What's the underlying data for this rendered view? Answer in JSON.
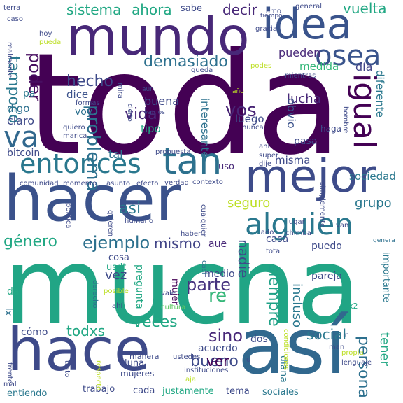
{
  "words": [
    {
      "text": "toda",
      "color": "#440154"
    },
    {
      "text": "mucha",
      "color": "#21a585"
    },
    {
      "text": "hacer",
      "color": "#3b528b"
    },
    {
      "text": "hace",
      "color": "#3e4a89"
    },
    {
      "text": "mundo",
      "color": "#482878"
    },
    {
      "text": "así",
      "color": "#31688e"
    },
    {
      "text": "idea",
      "color": "#3a548c"
    },
    {
      "text": "mejor",
      "color": "#3e4c8a"
    },
    {
      "text": "entonces",
      "color": "#2a788e"
    },
    {
      "text": "tan",
      "color": "#2d718e"
    },
    {
      "text": "alguien",
      "color": "#2a788e"
    },
    {
      "text": "osea",
      "color": "#3a548c"
    },
    {
      "text": "va",
      "color": "#31688e"
    },
    {
      "text": "igual",
      "color": "#440154"
    },
    {
      "text": "sistema",
      "color": "#22a884"
    },
    {
      "text": "ahora",
      "color": "#22a884"
    },
    {
      "text": "decir",
      "color": "#482878"
    },
    {
      "text": "poder",
      "color": "#470e61"
    },
    {
      "text": "vuelta",
      "color": "#22a884"
    },
    {
      "text": "tampoco",
      "color": "#2a788e"
    },
    {
      "text": "hecho",
      "color": "#3e4a89"
    },
    {
      "text": "demasiado",
      "color": "#2d708e"
    },
    {
      "text": "vida",
      "color": "#482878"
    },
    {
      "text": "vos",
      "color": "#482475"
    },
    {
      "text": "problema",
      "color": "#2d708e"
    },
    {
      "text": "ejemplo",
      "color": "#2d718e"
    },
    {
      "text": "mismo",
      "color": "#414487"
    },
    {
      "text": "género",
      "color": "#22a884"
    },
    {
      "text": "asi",
      "color": "#2a788e"
    },
    {
      "text": "seguro",
      "color": "#bddf26"
    },
    {
      "text": "grupo",
      "color": "#2a788e"
    },
    {
      "text": "parte",
      "color": "#46337f"
    },
    {
      "text": "vez",
      "color": "#3e4a89"
    },
    {
      "text": "re",
      "color": "#35b779"
    },
    {
      "text": "veces",
      "color": "#22a884"
    },
    {
      "text": "sino",
      "color": "#482878"
    },
    {
      "text": "social",
      "color": "#2a788e"
    },
    {
      "text": "bueno",
      "color": "#3e4a89"
    },
    {
      "text": "ver",
      "color": "#440154"
    },
    {
      "text": "todxs",
      "color": "#22a884"
    },
    {
      "text": "siempre",
      "color": "#1fa187"
    },
    {
      "text": "incluso",
      "color": "#2a788e"
    },
    {
      "text": "persona",
      "color": "#2d708e"
    },
    {
      "text": "nadie",
      "color": "#3e4a89"
    },
    {
      "text": "tener",
      "color": "#22a884"
    },
    {
      "text": "lucha",
      "color": "#482878"
    },
    {
      "text": "obvio",
      "color": "#3b528b"
    },
    {
      "text": "pueden",
      "color": "#482878"
    },
    {
      "text": "medida",
      "color": "#35b779"
    },
    {
      "text": "día",
      "color": "#414487"
    },
    {
      "text": "diferente",
      "color": "#2a788e"
    },
    {
      "text": "interesante",
      "color": "#2d718e"
    },
    {
      "text": "buena",
      "color": "#3e4a89"
    },
    {
      "text": "luego",
      "color": "#3e4a89"
    },
    {
      "text": "pasa",
      "color": "#3e4a89"
    },
    {
      "text": "sociedad",
      "color": "#2a788e"
    },
    {
      "text": "misma",
      "color": "#3e4a89"
    },
    {
      "text": "uso",
      "color": "#482878"
    },
    {
      "text": "tipo",
      "color": "#22a884"
    },
    {
      "text": "tal",
      "color": "#2d708e"
    },
    {
      "text": "bitcoin",
      "color": "#3e4a89"
    },
    {
      "text": "claro",
      "color": "#3e4a89"
    },
    {
      "text": "digo",
      "color": "#2d708e"
    },
    {
      "text": "dice",
      "color": "#3b528b"
    },
    {
      "text": "voy",
      "color": "#2d708e"
    },
    {
      "text": "pa",
      "color": "#2a788e"
    },
    {
      "text": "sabe",
      "color": "#3e4a89"
    },
    {
      "text": "aue",
      "color": "#482878"
    },
    {
      "text": "casa",
      "color": "#3e4a89"
    },
    {
      "text": "puedo",
      "color": "#3e4a89"
    },
    {
      "text": "medio",
      "color": "#3e4a89"
    },
    {
      "text": "pareja",
      "color": "#3e4a89"
    },
    {
      "text": "importante",
      "color": "#2a788e"
    },
    {
      "text": "pregunta",
      "color": "#22a884"
    },
    {
      "text": "mujer",
      "color": "#440154"
    },
    {
      "text": "cosa",
      "color": "#3e4a89"
    },
    {
      "text": "usdt",
      "color": "#22a884"
    },
    {
      "text": "da",
      "color": "#22a884"
    },
    {
      "text": "lx",
      "color": "#2d708e"
    },
    {
      "text": "cómo",
      "color": "#3e4a89"
    },
    {
      "text": "acuerdo",
      "color": "#3e4a89"
    },
    {
      "text": "dos",
      "color": "#3e4a89"
    },
    {
      "text": "diana",
      "color": "#2a788e"
    },
    {
      "text": "trabajo",
      "color": "#3e4a89"
    },
    {
      "text": "cada",
      "color": "#3e4a89"
    },
    {
      "text": "justamente",
      "color": "#22a884"
    },
    {
      "text": "tema",
      "color": "#3e4a89"
    },
    {
      "text": "sociales",
      "color": "#2a788e"
    },
    {
      "text": "entiendo",
      "color": "#2a788e"
    },
    {
      "text": "luna",
      "color": "#3e4a89"
    },
    {
      "text": "mujeres",
      "color": "#3e4a89"
    },
    {
      "text": "manera",
      "color": "#3e4a89"
    },
    {
      "text": "ustedes",
      "color": "#3e4a89"
    },
    {
      "text": "ahí",
      "color": "#3e4a89"
    },
    {
      "text": "cultura",
      "color": "#5ec962"
    },
    {
      "text": "posible",
      "color": "#bddf26"
    },
    {
      "text": "vale",
      "color": "#3e4a89"
    },
    {
      "text": "derecho",
      "color": "#2d708e"
    },
    {
      "text": "total",
      "color": "#3e4a89"
    },
    {
      "text": "casi",
      "color": "#2d708e"
    },
    {
      "text": "x2",
      "color": "#22a884"
    },
    {
      "text": "genera",
      "color": "#2d708e"
    },
    {
      "text": "chimba",
      "color": "#3e4a89"
    },
    {
      "text": "lado",
      "color": "#3e4a89"
    },
    {
      "text": "van",
      "color": "#3e4a89"
    },
    {
      "text": "lugar",
      "color": "#3e4a89"
    },
    {
      "text": "cualquier",
      "color": "#3e4a89"
    },
    {
      "text": "haber",
      "color": "#3e4a89"
    },
    {
      "text": "humano",
      "color": "#3e4a89"
    },
    {
      "text": "quieren",
      "color": "#3e4a89"
    },
    {
      "text": "política",
      "color": "#3e4a89"
    },
    {
      "text": "comunidad",
      "color": "#3e4a89"
    },
    {
      "text": "momento",
      "color": "#3e4a89"
    },
    {
      "text": "asunto",
      "color": "#3e4a89"
    },
    {
      "text": "efecto",
      "color": "#3e4a89"
    },
    {
      "text": "verdad",
      "color": "#3e4a89"
    },
    {
      "text": "contexto",
      "color": "#3e4a89"
    },
    {
      "text": "super",
      "color": "#3e4a89"
    },
    {
      "text": "dije",
      "color": "#3e4a89"
    },
    {
      "text": "simplemente",
      "color": "#3e4a89"
    },
    {
      "text": "propuesta",
      "color": "#3e4a89"
    },
    {
      "text": "ahí",
      "color": "#3e4a89"
    },
    {
      "text": "haga",
      "color": "#3e4a89"
    },
    {
      "text": "hombre",
      "color": "#3e4a89"
    },
    {
      "text": "nunca",
      "color": "#3e4a89"
    },
    {
      "text": "cierto",
      "color": "#3e4a89"
    },
    {
      "text": "vamos",
      "color": "#3e4a89"
    },
    {
      "text": "año",
      "color": "#bddf26"
    },
    {
      "text": "quiero",
      "color": "#3e4a89"
    },
    {
      "text": "marica",
      "color": "#3e4a89"
    },
    {
      "text": "formas",
      "color": "#3e4a89"
    },
    {
      "text": "mira",
      "color": "#3e4a89"
    },
    {
      "text": "aún",
      "color": "#3e4a89"
    },
    {
      "text": "queda",
      "color": "#3e4a89"
    },
    {
      "text": "podes",
      "color": "#bddf26"
    },
    {
      "text": "mientras",
      "color": "#3e4a89"
    },
    {
      "text": "general",
      "color": "#3e4a89"
    },
    {
      "text": "amo",
      "color": "#3e4a89"
    },
    {
      "text": "tiempo",
      "color": "#3e4a89"
    },
    {
      "text": "gracia",
      "color": "#3e4a89"
    },
    {
      "text": "terra",
      "color": "#3e4a89"
    },
    {
      "text": "caso",
      "color": "#3e4a89"
    },
    {
      "text": "hoy",
      "color": "#3e4a89"
    },
    {
      "text": "pueda",
      "color": "#bddf26"
    },
    {
      "text": "realmente",
      "color": "#3e4a89"
    },
    {
      "text": "frente",
      "color": "#3e4a89"
    },
    {
      "text": "mal",
      "color": "#3e4a89"
    },
    {
      "text": "trato",
      "color": "#3e4a89"
    },
    {
      "text": "respecto",
      "color": "#bddf26"
    },
    {
      "text": "aja",
      "color": "#bddf26"
    },
    {
      "text": "instituciones",
      "color": "#3e4a89"
    },
    {
      "text": "condiciones",
      "color": "#bddf26"
    },
    {
      "text": "lenguaje",
      "color": "#3e4a89"
    },
    {
      "text": "propia",
      "color": "#bddf26"
    },
    {
      "text": "ir",
      "color": "#3e4a89"
    },
    {
      "text": "man",
      "color": "#3e4a89"
    },
    {
      "text": "u",
      "color": "#3e4a89"
    }
  ]
}
